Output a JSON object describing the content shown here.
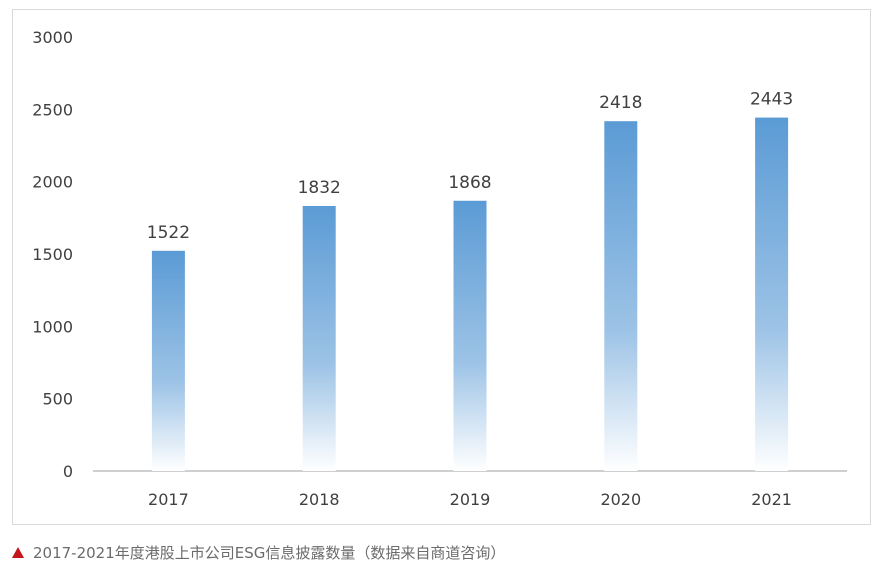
{
  "chart_data": {
    "type": "bar",
    "categories": [
      "2017",
      "2018",
      "2019",
      "2020",
      "2021"
    ],
    "values": [
      1522,
      1832,
      1868,
      2418,
      2443
    ],
    "data_labels": [
      "1522",
      "1832",
      "1868",
      "2418",
      "2443"
    ],
    "ylim": [
      0,
      3000
    ],
    "yticks": [
      "0",
      "500",
      "1000",
      "1500",
      "2000",
      "2500",
      "3000"
    ],
    "ytick_values": [
      0,
      500,
      1000,
      1500,
      2000,
      2500,
      3000
    ],
    "grid": false,
    "legend": "none",
    "colors": {
      "bar_top": "#5b9bd5",
      "bar_mid": "#9dc3e6",
      "bar_bottom": "#ffffff",
      "axis": "#bfbfbf",
      "text": "#404040"
    }
  },
  "caption": {
    "text": "2017-2021年度港股上市公司ESG信息披露数量（数据来自商道咨询）",
    "marker_icon": "red-triangle-icon",
    "marker_color": "#c3161c"
  }
}
